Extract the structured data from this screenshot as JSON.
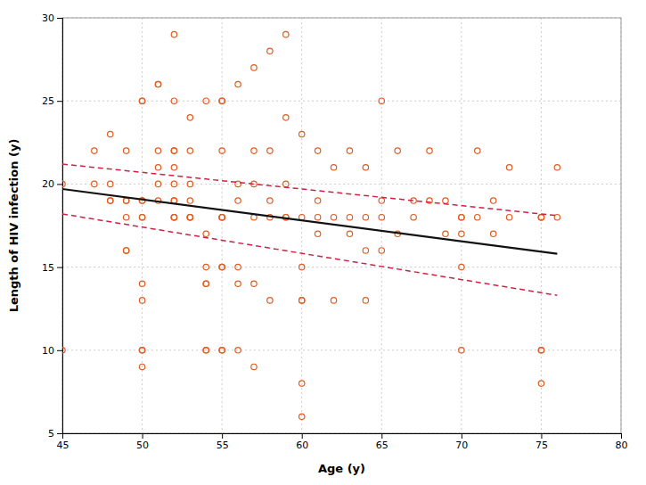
{
  "chart_data": {
    "type": "scatter",
    "xlabel": "Age (y)",
    "ylabel": "Length of HIV infection (y)",
    "xlim": [
      45,
      80
    ],
    "ylim": [
      5,
      30
    ],
    "xticks": [
      45,
      50,
      55,
      60,
      65,
      70,
      75,
      80
    ],
    "yticks": [
      5,
      10,
      15,
      20,
      25,
      30
    ],
    "grid": true,
    "series": [
      {
        "type": "scatter",
        "marker": "open-circle",
        "color": "#E05C20",
        "x": [
          45,
          45,
          47,
          47,
          48,
          48,
          48,
          48,
          49,
          49,
          49,
          49,
          49,
          49,
          50,
          50,
          50,
          50,
          50,
          50,
          50,
          50,
          50,
          50,
          50,
          51,
          51,
          51,
          51,
          51,
          51,
          52,
          52,
          52,
          52,
          52,
          52,
          52,
          52,
          52,
          52,
          52,
          53,
          53,
          53,
          53,
          53,
          53,
          53,
          54,
          54,
          54,
          54,
          54,
          54,
          54,
          55,
          55,
          55,
          55,
          55,
          55,
          55,
          55,
          55,
          55,
          56,
          56,
          56,
          56,
          56,
          56,
          57,
          57,
          57,
          57,
          57,
          57,
          58,
          58,
          58,
          58,
          58,
          59,
          59,
          59,
          59,
          59,
          60,
          60,
          60,
          60,
          60,
          60,
          60,
          61,
          61,
          61,
          61,
          62,
          62,
          62,
          63,
          63,
          63,
          64,
          64,
          64,
          64,
          65,
          65,
          65,
          65,
          66,
          66,
          67,
          67,
          68,
          68,
          69,
          69,
          70,
          70,
          70,
          70,
          70,
          71,
          71,
          72,
          72,
          73,
          73,
          75,
          75,
          75,
          75,
          75,
          75,
          76,
          76
        ],
        "values": [
          10,
          20,
          20,
          22,
          19,
          19,
          20,
          23,
          16,
          16,
          18,
          19,
          19,
          22,
          9,
          10,
          10,
          13,
          14,
          18,
          18,
          19,
          19,
          25,
          25,
          19,
          20,
          21,
          22,
          26,
          26,
          18,
          18,
          18,
          19,
          19,
          20,
          21,
          22,
          22,
          25,
          29,
          18,
          18,
          18,
          19,
          20,
          22,
          24,
          10,
          10,
          14,
          14,
          15,
          17,
          25,
          10,
          10,
          15,
          15,
          18,
          18,
          18,
          22,
          25,
          25,
          10,
          14,
          15,
          19,
          20,
          26,
          9,
          14,
          18,
          20,
          22,
          27,
          13,
          18,
          19,
          22,
          28,
          18,
          18,
          20,
          24,
          29,
          6,
          8,
          13,
          13,
          15,
          18,
          23,
          17,
          18,
          19,
          22,
          13,
          18,
          21,
          17,
          18,
          22,
          13,
          16,
          18,
          21,
          16,
          18,
          19,
          25,
          17,
          22,
          18,
          19,
          19,
          22,
          17,
          19,
          10,
          15,
          17,
          18,
          18,
          18,
          22,
          17,
          19,
          18,
          21,
          8,
          10,
          10,
          18,
          18,
          18,
          18,
          21
        ]
      },
      {
        "type": "line",
        "line_style": "solid",
        "color": "#111111",
        "x": [
          45,
          76
        ],
        "values": [
          19.7,
          15.8
        ]
      },
      {
        "type": "line",
        "line_style": "dashed",
        "color": "#CC2244",
        "x": [
          45,
          76
        ],
        "values": [
          21.2,
          18.1
        ]
      },
      {
        "type": "line",
        "line_style": "dashed",
        "color": "#CC2244",
        "x": [
          45,
          76
        ],
        "values": [
          18.2,
          13.3
        ]
      }
    ]
  }
}
